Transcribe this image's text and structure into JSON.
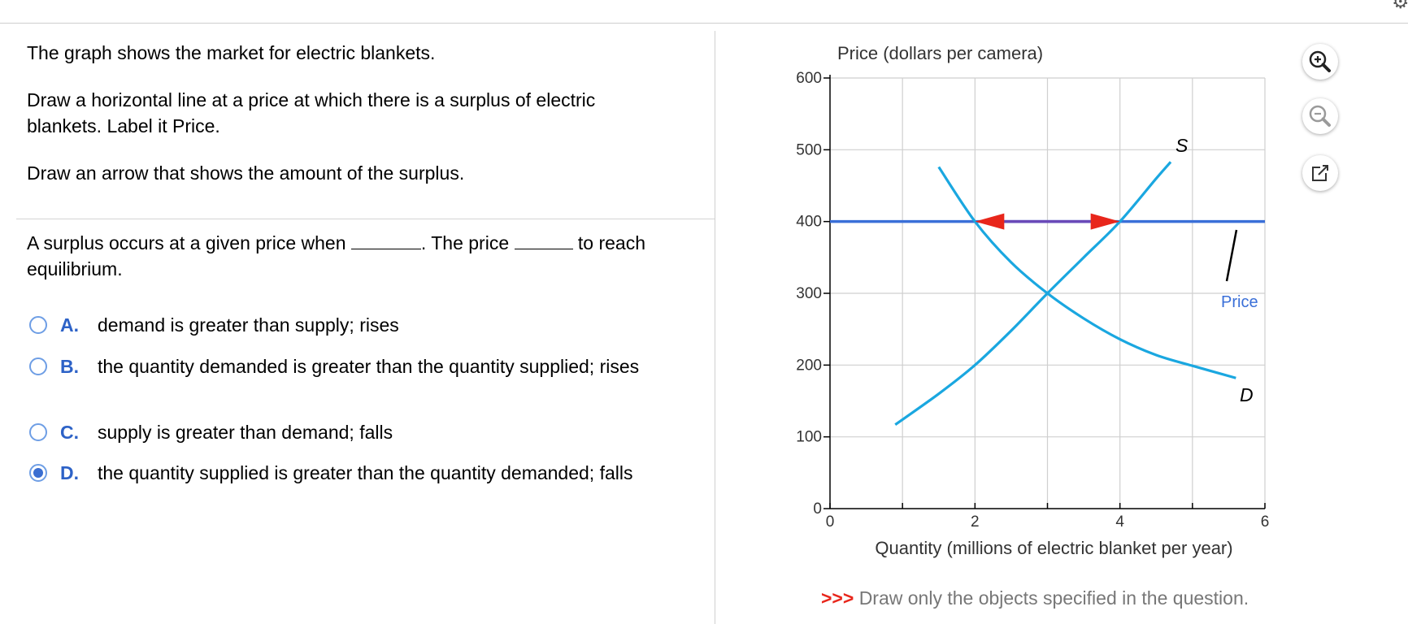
{
  "left_panel": {
    "intro": "The graph shows the market for electric blankets.",
    "instruction1": "Draw a horizontal line at a price at which there is a surplus of electric blankets. Label it Price.",
    "instruction2": "Draw an arrow that shows the amount of the surplus.",
    "question_part1": "A surplus occurs at a given price when",
    "question_part2": ". The price",
    "question_part3": "to reach equilibrium.",
    "options": [
      {
        "letter": "A.",
        "text": "demand is greater than supply; rises",
        "selected": false
      },
      {
        "letter": "B.",
        "text": "the quantity demanded is greater than the quantity  supplied; rises",
        "selected": false
      },
      {
        "letter": "C.",
        "text": "supply is greater than demand; falls",
        "selected": false
      },
      {
        "letter": "D.",
        "text": "the quantity supplied is greater than the quantity demanded; falls",
        "selected": true
      }
    ]
  },
  "tools": {
    "zoom_in": "zoom-in-icon",
    "zoom_out": "zoom-out-icon",
    "popout": "external-link-icon"
  },
  "note": {
    "marker": ">>>",
    "text": "Draw only the objects specified in the question."
  },
  "chart_data": {
    "type": "line",
    "ylabel": "Price (dollars per camera)",
    "xlabel": "Quantity (millions of electric blanket per year)",
    "xlim": [
      0,
      6
    ],
    "ylim": [
      0,
      600
    ],
    "x_ticks": [
      "0",
      "2",
      "4",
      "6"
    ],
    "y_ticks": [
      "0",
      "100",
      "200",
      "300",
      "400",
      "500",
      "600"
    ],
    "grid": true,
    "series": [
      {
        "name": "S",
        "color": "#1aa7e0",
        "x": [
          0.9,
          1.5,
          2.0,
          2.5,
          3.0,
          3.5,
          4.0,
          4.5,
          4.7
        ],
        "y": [
          117,
          160,
          200,
          248,
          300,
          350,
          400,
          460,
          483
        ]
      },
      {
        "name": "D",
        "color": "#1aa7e0",
        "x": [
          1.5,
          2.0,
          2.5,
          3.0,
          3.5,
          4.0,
          4.5,
          5.0,
          5.6
        ],
        "y": [
          476,
          400,
          343,
          300,
          265,
          236,
          214,
          199,
          182
        ]
      }
    ],
    "horizontal_line": {
      "label": "Price",
      "y": 400,
      "color": "#3a6fd8"
    },
    "surplus_arrows": {
      "from_x": 2,
      "to_x": 4,
      "y": 400,
      "color": "#e8261b"
    }
  }
}
